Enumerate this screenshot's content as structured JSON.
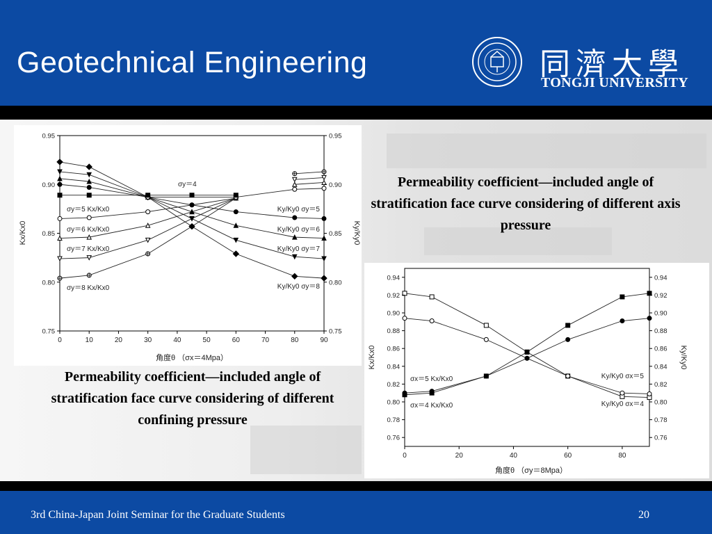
{
  "header": {
    "title": "Geotechnical Engineering",
    "university_cn": "同濟大學",
    "university_en": "TONGJI UNIVERSITY",
    "seal_icon": "university-seal-icon"
  },
  "footer": {
    "seminar": "3rd China-Japan Joint Seminar for the Graduate Students",
    "page": "20"
  },
  "captions": {
    "right": "Permeability coefficient—included angle of stratification face curve considering of different axis pressure",
    "left": "Permeability coefficient—included angle of stratification face curve considering of different confining pressure"
  },
  "colors": {
    "header_blue": "#0c4aa3",
    "band_black": "#000000"
  },
  "chart_data": [
    {
      "type": "line",
      "xlabel": "角度θ  （σx＝4Mpa）",
      "ylabel": "Kx/Kx0",
      "ylabel_right": "Ky/Ky0",
      "xlim": [
        0,
        90
      ],
      "ylim": [
        0.75,
        0.95
      ],
      "x_ticks": [
        "0",
        "10",
        "20",
        "30",
        "40",
        "50",
        "60",
        "70",
        "80",
        "90"
      ],
      "y_ticks": [
        "0.75",
        "0.80",
        "0.85",
        "0.90",
        "0.95"
      ],
      "annotation": "σy＝4",
      "x": [
        0,
        10,
        30,
        45,
        60,
        80,
        90
      ],
      "series": [
        {
          "name": "σy＝5 Kx/Kx0",
          "marker": "circle-open",
          "values": [
            0.865,
            0.866,
            0.872,
            0.879,
            0.886,
            null,
            null
          ]
        },
        {
          "name": "σy＝6 Kx/Kx0",
          "marker": "triangle-open",
          "values": [
            0.845,
            0.846,
            0.858,
            0.872,
            0.886,
            null,
            null
          ]
        },
        {
          "name": "σy＝7 Kx/Kx0",
          "marker": "triangle-down-open",
          "values": [
            0.824,
            0.825,
            0.843,
            0.865,
            0.886,
            null,
            null
          ]
        },
        {
          "name": "σy＝8 Kx/Kx0",
          "marker": "circle-cross",
          "values": [
            0.804,
            0.807,
            0.829,
            0.857,
            0.886,
            null,
            null
          ]
        },
        {
          "name": "Ky/Ky0 σy＝5",
          "marker": "circle-filled",
          "values": [
            0.9,
            0.897,
            0.887,
            0.879,
            0.872,
            0.866,
            0.865
          ]
        },
        {
          "name": "Ky/Ky0 σy＝6",
          "marker": "triangle-filled",
          "values": [
            0.906,
            0.903,
            0.887,
            0.872,
            0.858,
            0.846,
            0.845
          ]
        },
        {
          "name": "Ky/Ky0 σy＝7",
          "marker": "triangle-down-filled",
          "values": [
            0.913,
            0.91,
            0.887,
            0.865,
            0.843,
            0.826,
            0.824
          ]
        },
        {
          "name": "Ky/Ky0 σy＝8",
          "marker": "diamond-filled",
          "values": [
            0.923,
            0.918,
            0.887,
            0.857,
            0.829,
            0.806,
            0.804
          ]
        },
        {
          "name": "",
          "marker": "circle-open",
          "values": [
            null,
            null,
            0.887,
            null,
            0.887,
            0.895,
            0.896
          ]
        },
        {
          "name": "",
          "marker": "triangle-open",
          "values": [
            null,
            null,
            null,
            null,
            null,
            0.9,
            0.902
          ]
        },
        {
          "name": "",
          "marker": "triangle-down-open",
          "values": [
            null,
            null,
            null,
            null,
            null,
            0.905,
            0.907
          ]
        },
        {
          "name": "",
          "marker": "circle-cross",
          "values": [
            null,
            null,
            null,
            null,
            null,
            0.911,
            0.913
          ]
        },
        {
          "name": "σy＝4",
          "marker": "square-filled",
          "values": [
            0.889,
            0.889,
            0.889,
            0.889,
            0.889,
            null,
            null
          ]
        }
      ],
      "labels": {
        "s5": "σy＝5  Kx/Kx0",
        "s6": "σy＝6  Kx/Kx0",
        "s7": "σy＝7  Kx/Kx0",
        "s8": "σy＝8  Kx/Kx0",
        "r5": "Ky/Ky0 σy＝5",
        "r6": "Ky/Ky0 σy＝6",
        "r7": "Ky/Ky0 σy＝7",
        "r8": "Ky/Ky0   σy＝8"
      }
    },
    {
      "type": "line",
      "xlabel": "角度θ  （σy＝8Mpa）",
      "ylabel": "Kx/Kx0",
      "ylabel_right": "Ky/Ky0",
      "xlim": [
        0,
        90
      ],
      "ylim": [
        0.75,
        0.95
      ],
      "x_ticks": [
        "0",
        "20",
        "40",
        "60",
        "80"
      ],
      "y_ticks": [
        "0.76",
        "0.78",
        "0.80",
        "0.82",
        "0.84",
        "0.86",
        "0.88",
        "0.90",
        "0.92",
        "0.94"
      ],
      "x": [
        0,
        10,
        30,
        45,
        60,
        80,
        90
      ],
      "series": [
        {
          "name": "σx＝5 Kx/Kx0",
          "marker": "square-open",
          "values": [
            0.922,
            0.918,
            0.886,
            0.856,
            0.829,
            0.806,
            0.805
          ]
        },
        {
          "name": "σx＝4 Kx/Kx0",
          "marker": "circle-open",
          "values": [
            0.894,
            0.891,
            0.87,
            0.849,
            0.829,
            0.81,
            0.809
          ]
        },
        {
          "name": "Ky/Ky0 σx＝5",
          "marker": "square-filled",
          "values": [
            0.808,
            0.81,
            0.829,
            0.856,
            0.886,
            0.918,
            0.922
          ]
        },
        {
          "name": "Ky/Ky0 σx＝4",
          "marker": "circle-filled",
          "values": [
            0.81,
            0.812,
            0.829,
            0.849,
            0.87,
            0.891,
            0.894
          ]
        }
      ],
      "labels": {
        "l5": "σx＝5  Kx/Kx0",
        "l4": "σx＝4   Kx/Kx0",
        "r5": "Ky/Ky0  σx＝5",
        "r4": "Ky/Ky0  σx＝4"
      }
    }
  ]
}
